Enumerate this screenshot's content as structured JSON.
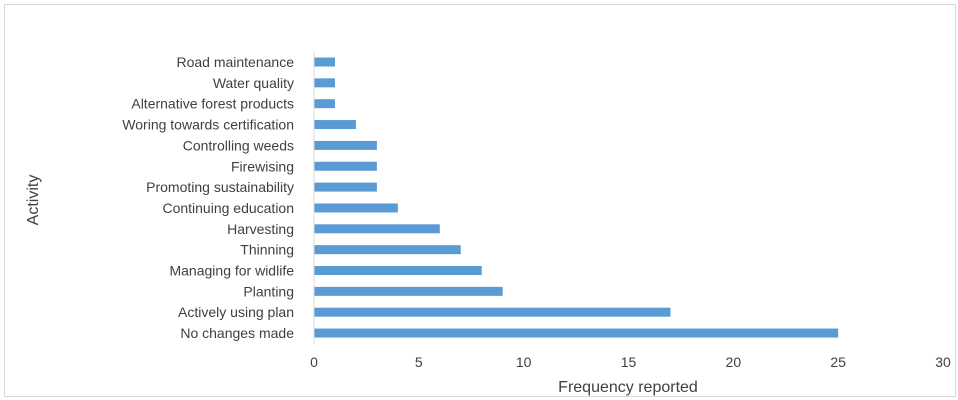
{
  "chart_data": {
    "type": "bar",
    "orientation": "horizontal",
    "categories": [
      "Road maintenance",
      "Water quality",
      "Alternative forest products",
      "Woring towards certification",
      "Controlling weeds",
      "Firewising",
      "Promoting sustainability",
      "Continuing education",
      "Harvesting",
      "Thinning",
      "Managing for widlife",
      "Planting",
      "Actively using plan",
      "No changes made"
    ],
    "values": [
      1,
      1,
      1,
      2,
      3,
      3,
      3,
      4,
      6,
      7,
      8,
      9,
      17,
      25
    ],
    "xlabel": "Frequency reported",
    "ylabel": "Activity",
    "xlim": [
      0,
      30
    ],
    "xticks": [
      0,
      5,
      10,
      15,
      20,
      25,
      30
    ],
    "grid": false,
    "bar_color": "#5b9bd5",
    "axis_color": "#d9d9d9",
    "text_color": "#404040"
  }
}
